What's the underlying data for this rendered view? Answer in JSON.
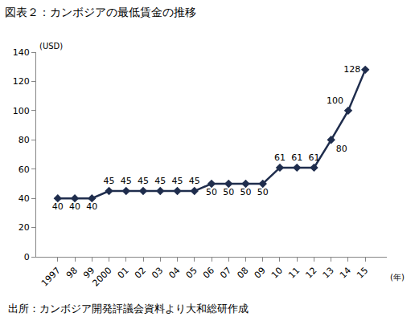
{
  "chart_data": {
    "type": "line",
    "title": "図表２：カンボジアの最低賃金の推移",
    "y_label": "(USD)",
    "x_label": "(年)",
    "source": "出所：カンボジア開発評議会資料より大和総研作成",
    "categories": [
      "1997",
      "98",
      "99",
      "2000",
      "01",
      "02",
      "03",
      "04",
      "05",
      "06",
      "07",
      "08",
      "09",
      "10",
      "11",
      "12",
      "13",
      "14",
      "15"
    ],
    "values": [
      40,
      40,
      40,
      45,
      45,
      45,
      45,
      45,
      45,
      50,
      50,
      50,
      50,
      61,
      61,
      61,
      80,
      100,
      128
    ],
    "color": "#1f2d4d",
    "marker": "diamond",
    "line_style": "solid",
    "ylim": [
      0,
      140
    ],
    "yticks": [
      0,
      20,
      40,
      60,
      80,
      100,
      120,
      140
    ],
    "grid": false,
    "data_labels": true
  }
}
